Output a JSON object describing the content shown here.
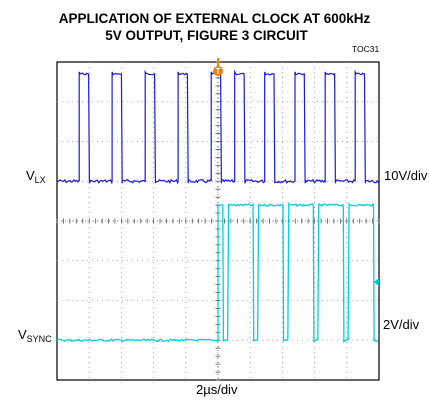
{
  "chart_data": {
    "type": "line",
    "title": "APPLICATION OF EXTERNAL CLOCK AT 600kHz",
    "subtitle": "5V OUTPUT, FIGURE 3 CIRCUIT",
    "figure_id": "TOC31",
    "xlabel": "2µs/div",
    "x_divisions": 10,
    "y_divisions": 8,
    "grid": true,
    "trigger_marker": "T",
    "series": [
      {
        "name_main": "V",
        "name_sub": "LX",
        "scale": "10V/div",
        "color": "#1a1adc",
        "type": "pulse_train",
        "baseline_div": 1.0,
        "high_div": 3.7,
        "rising_edges_div": [
          0.69,
          1.71,
          2.74,
          3.76,
          4.79,
          5.52,
          6.45,
          7.39,
          8.33,
          9.26
        ],
        "pulse_width_div": 0.29
      },
      {
        "name_main": "V",
        "name_sub": "SYNC",
        "scale": "2V/div",
        "color": "#00d0e0",
        "type": "pulse_train",
        "baseline_div": -3.0,
        "high_div": 0.4,
        "start_div": 5.0,
        "low_segments_div": [
          [
            5.15,
            5.33
          ],
          [
            6.09,
            6.26
          ],
          [
            7.02,
            7.2
          ],
          [
            7.96,
            8.13
          ],
          [
            8.89,
            9.07
          ],
          [
            9.83,
            10.0
          ]
        ]
      }
    ]
  }
}
